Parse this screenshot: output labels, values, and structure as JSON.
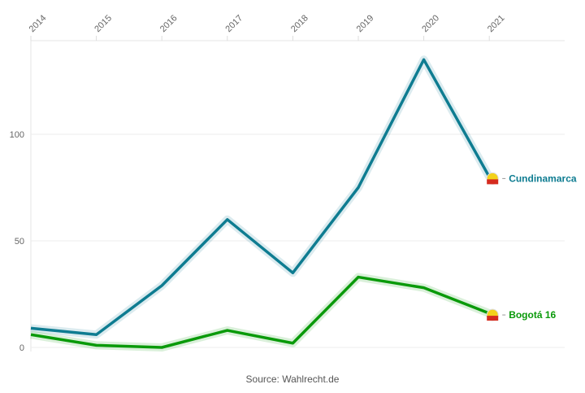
{
  "chart_data": {
    "type": "line",
    "x": [
      2014,
      2015,
      2016,
      2017,
      2018,
      2019,
      2020,
      2021
    ],
    "xlim": [
      2014,
      2021.9
    ],
    "ylim": [
      -5,
      144
    ],
    "yticks": [
      0,
      50,
      100
    ],
    "grid": true,
    "x_axis_position": "top",
    "series": [
      {
        "name": "Cundinamarca",
        "label": "Cundinamarca",
        "color": "#0e7c91",
        "values": [
          9,
          6,
          29,
          60,
          35,
          75,
          135,
          80
        ]
      },
      {
        "name": "Bogotá",
        "label": "Bogotá 16",
        "color": "#0a9a0a",
        "values": [
          6,
          1,
          0,
          8,
          2,
          33,
          28,
          16
        ]
      }
    ],
    "source": "Source: Wahlrecht.de"
  }
}
